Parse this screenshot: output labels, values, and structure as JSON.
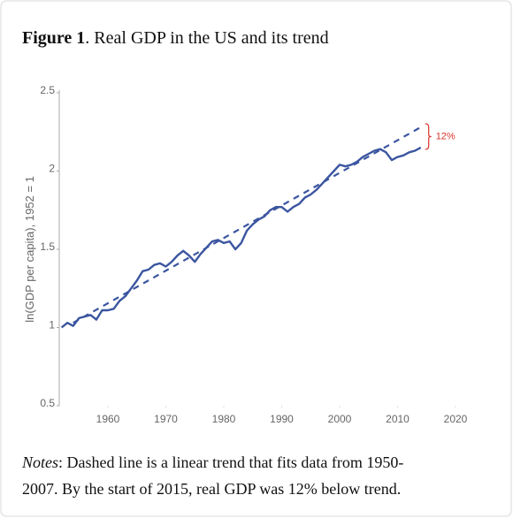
{
  "chart_data": {
    "type": "line",
    "title_label": "Figure 1",
    "title": ". Real GDP in the US and its trend",
    "y_label": "ln(GDP per capita), 1952 = 1",
    "annotation": "12%",
    "annotation_color": "#d9342b",
    "notes_label": "Notes",
    "notes": [
      ": Dashed line is a linear trend that fits data from 1950-",
      "2007. By the start of 2015, real GDP was 12% below trend."
    ],
    "xlim": [
      1951.6,
      2020
    ],
    "xticks": [
      1960,
      1970,
      1980,
      1990,
      2000,
      2010,
      2020
    ],
    "ylim": [
      0.5,
      2.5
    ],
    "yticks": [
      0.5,
      1,
      1.5,
      2,
      2.5
    ],
    "series": [
      {
        "color": "#3b55a0",
        "style": "solid",
        "x": [
          1952,
          1953,
          1954,
          1955,
          1956,
          1957,
          1958,
          1959,
          1960,
          1961,
          1962,
          1963,
          1964,
          1965,
          1966,
          1967,
          1968,
          1969,
          1970,
          1971,
          1972,
          1973,
          1974,
          1975,
          1976,
          1977,
          1978,
          1979,
          1980,
          1981,
          1982,
          1983,
          1984,
          1985,
          1986,
          1987,
          1988,
          1989,
          1990,
          1991,
          1992,
          1993,
          1994,
          1995,
          1996,
          1997,
          1998,
          1999,
          2000,
          2001,
          2002,
          2003,
          2004,
          2005,
          2006,
          2007,
          2008,
          2009,
          2010,
          2011,
          2012,
          2013,
          2014
        ],
        "values": [
          1.0,
          1.03,
          1.01,
          1.06,
          1.07,
          1.08,
          1.05,
          1.11,
          1.11,
          1.12,
          1.17,
          1.2,
          1.25,
          1.3,
          1.36,
          1.37,
          1.4,
          1.41,
          1.39,
          1.42,
          1.46,
          1.49,
          1.46,
          1.42,
          1.47,
          1.51,
          1.55,
          1.56,
          1.54,
          1.55,
          1.5,
          1.54,
          1.62,
          1.66,
          1.69,
          1.71,
          1.75,
          1.77,
          1.77,
          1.74,
          1.77,
          1.79,
          1.83,
          1.85,
          1.88,
          1.92,
          1.96,
          2.0,
          2.04,
          2.03,
          2.04,
          2.06,
          2.09,
          2.11,
          2.13,
          2.14,
          2.12,
          2.07,
          2.09,
          2.1,
          2.12,
          2.13,
          2.15
        ]
      },
      {
        "color": "#3b55a0",
        "style": "dashed",
        "x": [
          1954,
          2014
        ],
        "values": [
          1.03,
          2.28
        ]
      }
    ]
  }
}
